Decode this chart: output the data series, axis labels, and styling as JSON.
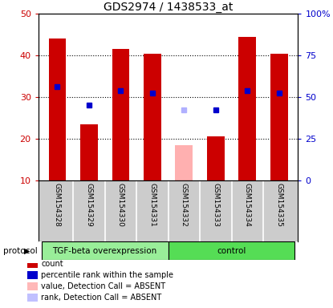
{
  "title": "GDS2974 / 1438533_at",
  "samples": [
    "GSM154328",
    "GSM154329",
    "GSM154330",
    "GSM154331",
    "GSM154332",
    "GSM154333",
    "GSM154334",
    "GSM154335"
  ],
  "bar_values": [
    44.0,
    23.5,
    41.5,
    40.5,
    18.5,
    20.5,
    44.5,
    40.5
  ],
  "bar_colors": [
    "#cc0000",
    "#cc0000",
    "#cc0000",
    "#cc0000",
    "#ffb0b0",
    "#cc0000",
    "#cc0000",
    "#cc0000"
  ],
  "dot_values_left": [
    32.5,
    28.0,
    31.5,
    31.0,
    27.0,
    27.0,
    31.5,
    31.0
  ],
  "dot_colors": [
    "#0000cc",
    "#0000cc",
    "#0000cc",
    "#0000cc",
    "#b0b0ff",
    "#0000cc",
    "#0000cc",
    "#0000cc"
  ],
  "left_ylim": [
    10,
    50
  ],
  "left_yticks": [
    10,
    20,
    30,
    40,
    50
  ],
  "right_ylim": [
    0,
    100
  ],
  "right_yticks": [
    0,
    25,
    50,
    75,
    100
  ],
  "right_yticklabels": [
    "0",
    "25",
    "50",
    "75",
    "100%"
  ],
  "group1_label": "TGF-beta overexpression",
  "group2_label": "control",
  "group1_count": 4,
  "group2_count": 4,
  "group1_color": "#99ee99",
  "group2_color": "#55dd55",
  "protocol_label": "protocol",
  "legend_items": [
    {
      "label": "count",
      "color": "#cc0000"
    },
    {
      "label": "percentile rank within the sample",
      "color": "#0000cc"
    },
    {
      "label": "value, Detection Call = ABSENT",
      "color": "#ffb8b8"
    },
    {
      "label": "rank, Detection Call = ABSENT",
      "color": "#c0c0ff"
    }
  ],
  "left_tick_color": "#cc0000",
  "right_tick_color": "#0000cc",
  "sample_area_color": "#cccccc",
  "bg_color": "#ffffff"
}
